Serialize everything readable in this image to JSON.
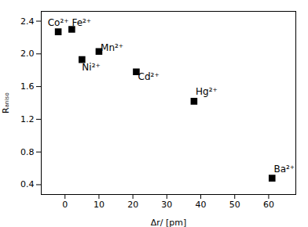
{
  "chart_data": {
    "type": "scatter",
    "x": [
      -2,
      2,
      5,
      10,
      21,
      38,
      61
    ],
    "values": [
      2.27,
      2.3,
      1.93,
      2.03,
      1.78,
      1.42,
      0.48
    ],
    "marker": "square",
    "color": "black",
    "xlabel": "Δr/ [pm]",
    "ylabel": "Rₐₙᵢₛₒ",
    "xlim": [
      -7,
      68
    ],
    "ylim": [
      0.28,
      2.52
    ],
    "xticks": [
      0,
      10,
      20,
      30,
      40,
      50,
      60
    ],
    "yticks": [
      {
        "value": 0.4,
        "label": "0.4"
      },
      {
        "value": 0.8,
        "label": "0.8"
      },
      {
        "value": 1.2,
        "label": "1.2"
      },
      {
        "value": 1.6,
        "label": "1.6"
      },
      {
        "value": 2.0,
        "label": "2.0"
      },
      {
        "value": 2.4,
        "label": "2.4"
      }
    ],
    "grid": false,
    "annotations": [
      {
        "text": "Co²⁺",
        "x": -2,
        "y": 2.34,
        "align": "center"
      },
      {
        "text": "Fe²⁺",
        "x": 2,
        "y": 2.34,
        "align": "left"
      },
      {
        "text": "Ni²⁺",
        "x": 5,
        "y": 1.8,
        "align": "left"
      },
      {
        "text": "Mn²⁺",
        "x": 10.5,
        "y": 2.04,
        "align": "left"
      },
      {
        "text": "Cd²⁺",
        "x": 21.5,
        "y": 1.68,
        "align": "left"
      },
      {
        "text": "Hg²⁺",
        "x": 38.5,
        "y": 1.5,
        "align": "left"
      },
      {
        "text": "Ba²⁺",
        "x": 61.5,
        "y": 0.55,
        "align": "left"
      }
    ]
  }
}
